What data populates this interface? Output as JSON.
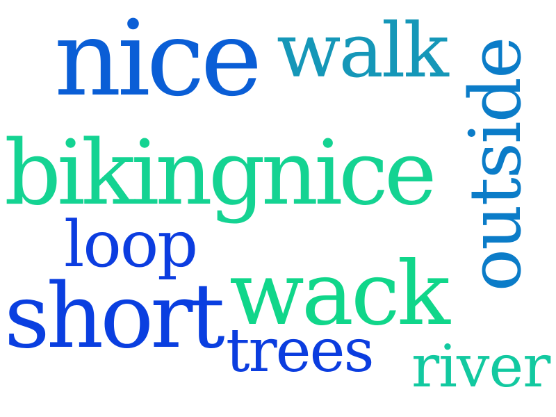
{
  "words": [
    {
      "text": "nice",
      "color": "#0a5ed6"
    },
    {
      "text": "walk",
      "color": "#1597b8"
    },
    {
      "text": "outside",
      "color": "#0b7cc8"
    },
    {
      "text": "bikingnice",
      "color": "#14d392"
    },
    {
      "text": "loop",
      "color": "#0c3de0"
    },
    {
      "text": "short",
      "color": "#0a3fe0"
    },
    {
      "text": "wack",
      "color": "#10d68a"
    },
    {
      "text": "trees",
      "color": "#0b3ddf"
    },
    {
      "text": "river",
      "color": "#12c9a0"
    }
  ]
}
